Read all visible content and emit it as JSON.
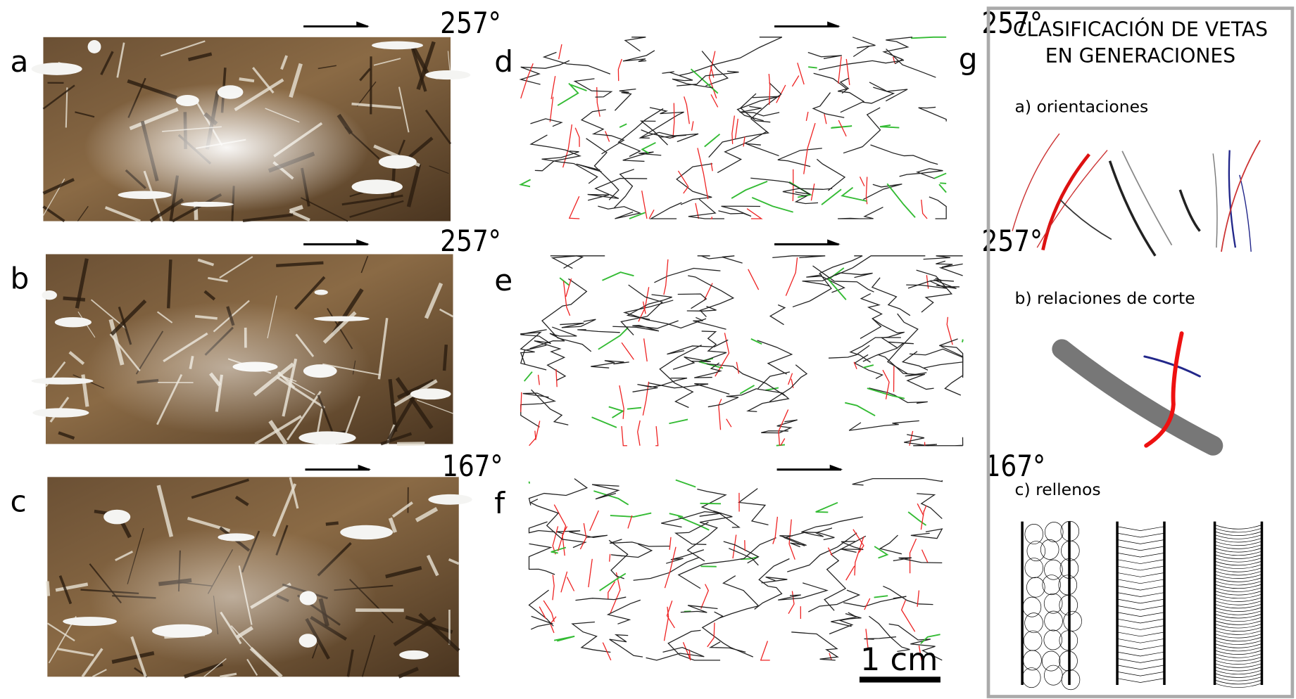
{
  "panels": [
    {
      "label": "a",
      "direction": "257°"
    },
    {
      "label": "b",
      "direction": "257°"
    },
    {
      "label": "c",
      "direction": "167°"
    },
    {
      "label": "d",
      "direction": "257°"
    },
    {
      "label": "e",
      "direction": "257°"
    },
    {
      "label": "f",
      "direction": "167°"
    }
  ],
  "scale_bar": "1 cm",
  "legend": {
    "label": "g",
    "title": [
      "CLASIFICACIÓN DE VETAS",
      "EN GENERACIONES"
    ],
    "sections": [
      "a) orientaciones",
      "b) relaciones de corte",
      "c) rellenos"
    ]
  }
}
